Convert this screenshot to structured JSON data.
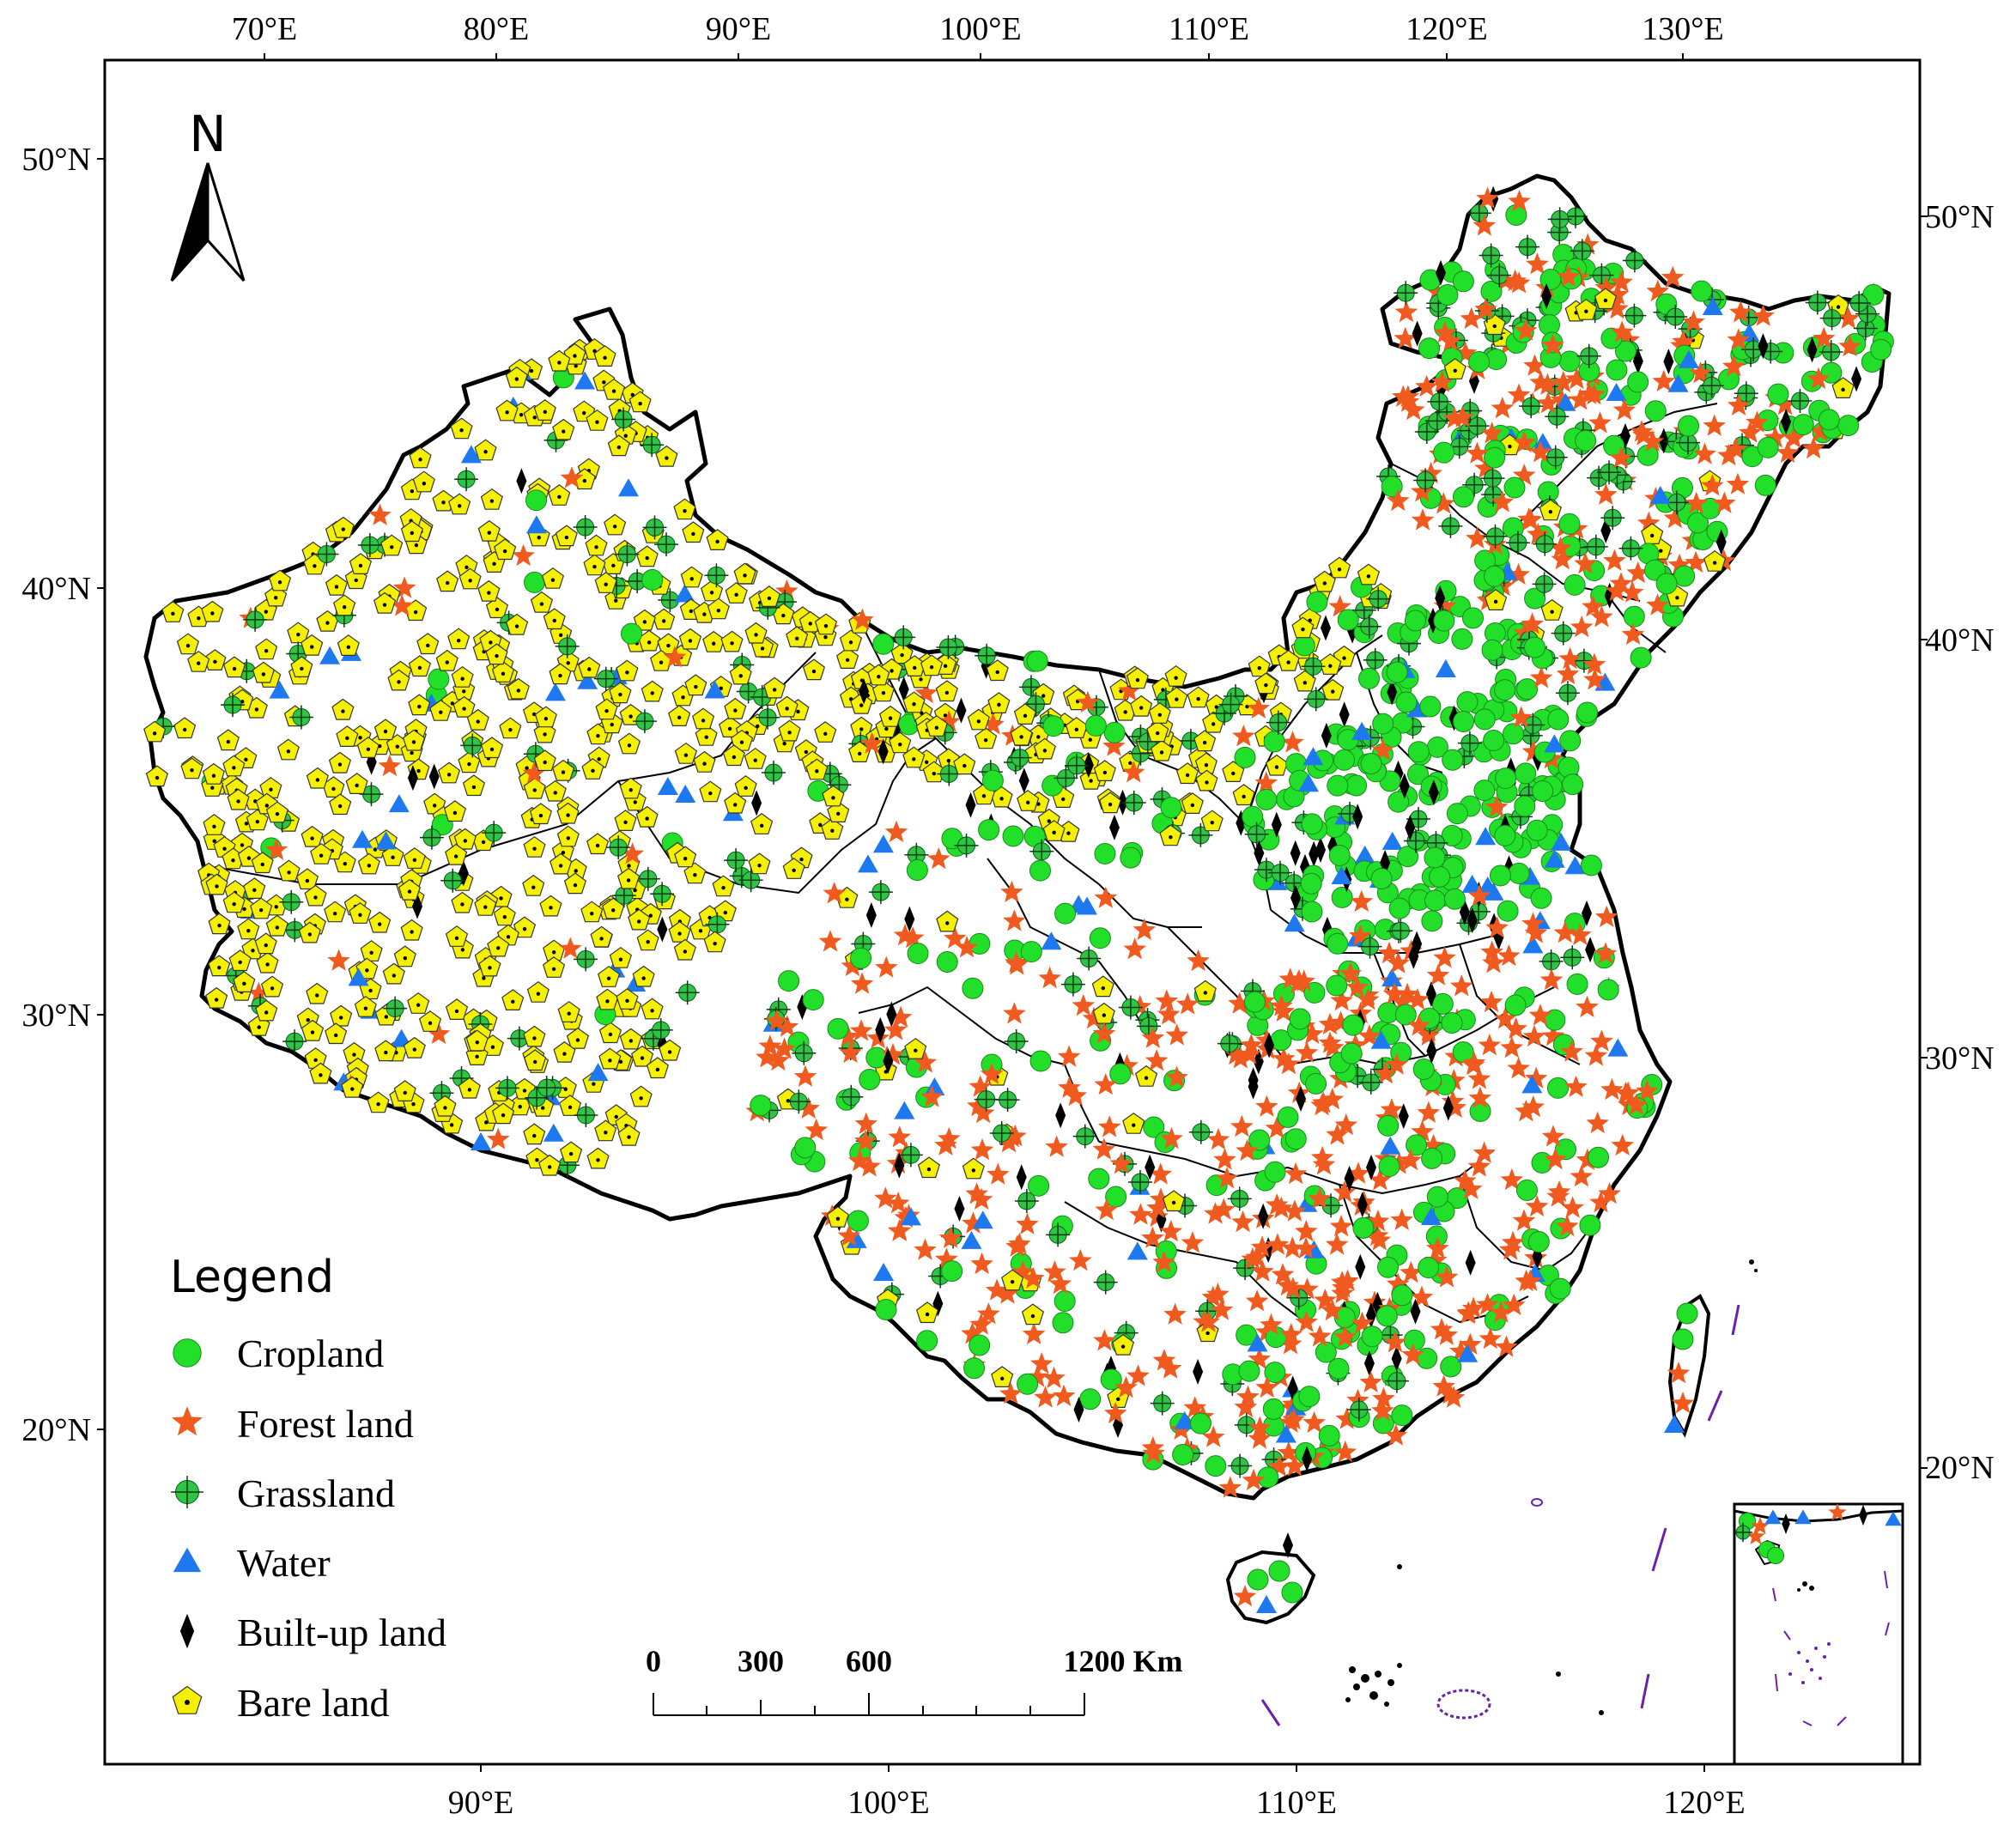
{
  "map": {
    "top_lon_labels": [
      "70°E",
      "80°E",
      "90°E",
      "100°E",
      "110°E",
      "120°E",
      "130°E"
    ],
    "bottom_lon_labels": [
      "90°E",
      "100°E",
      "110°E",
      "120°E"
    ],
    "left_lat_labels": [
      "50°N",
      "40°N",
      "30°N",
      "20°N"
    ],
    "right_lat_labels": [
      "50°N",
      "40°N",
      "30°N",
      "20°N"
    ]
  },
  "north_arrow": {
    "label": "N"
  },
  "legend": {
    "title": "Legend",
    "items": [
      {
        "label": "Cropland",
        "symbol": "circle",
        "color": "#22e02a"
      },
      {
        "label": "Forest land",
        "symbol": "star",
        "color": "#f05a1e"
      },
      {
        "label": "Grassland",
        "symbol": "crossed-circle",
        "color": "#2ec445"
      },
      {
        "label": "Water",
        "symbol": "triangle",
        "color": "#1e78f0"
      },
      {
        "label": "Built-up land",
        "symbol": "diamond",
        "color": "#000000"
      },
      {
        "label": "Bare land",
        "symbol": "pentagon",
        "color": "#f5f000"
      }
    ]
  },
  "scale_bar": {
    "labels": [
      "0",
      "300",
      "600",
      "1200 Km"
    ]
  }
}
